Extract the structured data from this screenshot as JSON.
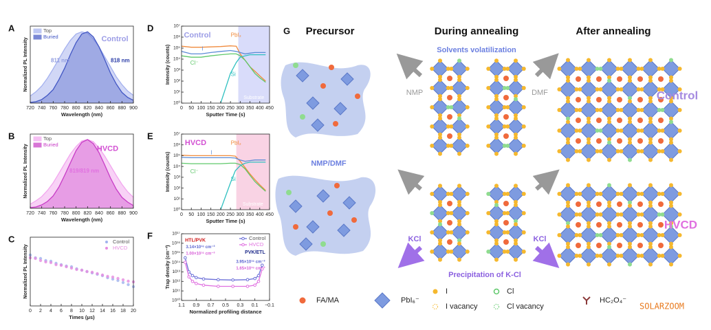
{
  "chart_data": [
    {
      "type": "area",
      "label": "A",
      "xlabel": "Wavelength (nm)",
      "ylabel": "Normalized PL Intensity",
      "legend": "upper left",
      "x": [
        720,
        730,
        740,
        750,
        760,
        770,
        780,
        790,
        800,
        810,
        820,
        830,
        840,
        850,
        860,
        870,
        880,
        890,
        900
      ],
      "xlim": [
        720,
        900
      ],
      "xticks": [
        720,
        740,
        760,
        780,
        800,
        820,
        840,
        860,
        880,
        900
      ],
      "ylim": [
        0,
        1.08
      ],
      "series": [
        {
          "name": "Top",
          "color": "#a3b0ee",
          "values": [
            0.1,
            0.16,
            0.24,
            0.35,
            0.48,
            0.62,
            0.76,
            0.88,
            0.97,
            1.0,
            0.98,
            0.9,
            0.79,
            0.65,
            0.51,
            0.37,
            0.26,
            0.17,
            0.11
          ]
        },
        {
          "name": "Buried",
          "color": "#4257c4",
          "values": [
            0.01,
            0.02,
            0.05,
            0.11,
            0.19,
            0.33,
            0.49,
            0.68,
            0.85,
            0.97,
            1.0,
            0.93,
            0.79,
            0.61,
            0.42,
            0.27,
            0.15,
            0.08,
            0.04
          ]
        }
      ],
      "annotations": [
        {
          "text": "Control",
          "color": "#9c9de6"
        },
        {
          "text": "811 nm",
          "color": "#8f9be0"
        },
        {
          "text": "818 nm",
          "color": "#2b3da8"
        }
      ]
    },
    {
      "type": "area",
      "label": "B",
      "xlabel": "Wavelength (nm)",
      "ylabel": "Normalized PL Intensity",
      "legend": "upper left",
      "x": [
        720,
        730,
        740,
        750,
        760,
        770,
        780,
        790,
        800,
        810,
        820,
        830,
        840,
        850,
        860,
        870,
        880,
        890,
        900
      ],
      "xlim": [
        720,
        900
      ],
      "xticks": [
        720,
        740,
        760,
        780,
        800,
        820,
        840,
        860,
        880,
        900
      ],
      "ylim": [
        0,
        1.08
      ],
      "series": [
        {
          "name": "Top",
          "color": "#f2a6ee",
          "values": [
            0.06,
            0.11,
            0.17,
            0.26,
            0.37,
            0.51,
            0.65,
            0.79,
            0.9,
            0.98,
            1.0,
            0.97,
            0.88,
            0.76,
            0.62,
            0.48,
            0.35,
            0.24,
            0.16
          ]
        },
        {
          "name": "Buried",
          "color": "#c83cc6",
          "values": [
            0.01,
            0.02,
            0.05,
            0.1,
            0.18,
            0.31,
            0.48,
            0.66,
            0.84,
            0.96,
            1.0,
            0.94,
            0.81,
            0.63,
            0.44,
            0.28,
            0.16,
            0.09,
            0.04
          ]
        }
      ],
      "annotations": [
        {
          "text": "HVCD",
          "color": "#d24fd2"
        },
        {
          "text": "819/819 nm",
          "color": "#e070e0"
        }
      ]
    },
    {
      "type": "scatter",
      "label": "C",
      "xlabel": "Times (μs)",
      "ylabel": "Normalized PL Intensity",
      "legend": "upper right",
      "x": [
        0,
        1,
        2,
        3,
        4,
        5,
        6,
        7,
        8,
        9,
        10,
        11,
        12,
        13,
        14,
        15,
        16,
        17,
        18,
        19,
        20
      ],
      "xlim": [
        0,
        20
      ],
      "xticks": [
        0,
        2,
        4,
        6,
        8,
        10,
        12,
        14,
        16,
        18,
        20
      ],
      "ylim": [
        0,
        1
      ],
      "series": [
        {
          "name": "Control",
          "color": "#9fb2ee",
          "values": [
            0.74,
            0.7,
            0.69,
            0.66,
            0.65,
            0.62,
            0.6,
            0.58,
            0.57,
            0.54,
            0.52,
            0.5,
            0.48,
            0.46,
            0.44,
            0.41,
            0.39,
            0.37,
            0.34,
            0.31,
            0.28
          ]
        },
        {
          "name": "HVCD",
          "color": "#e68be0",
          "values": [
            0.7,
            0.69,
            0.66,
            0.64,
            0.63,
            0.6,
            0.59,
            0.57,
            0.55,
            0.53,
            0.52,
            0.5,
            0.49,
            0.47,
            0.45,
            0.43,
            0.42,
            0.4,
            0.38,
            0.36,
            0.35
          ]
        }
      ],
      "annotations": []
    },
    {
      "type": "line",
      "label": "D",
      "xlabel": "Sputter Time (s)",
      "ylabel": "Intensity (counts)",
      "legend": "inline",
      "log": true,
      "x": [
        0,
        50,
        100,
        150,
        200,
        250,
        280,
        300,
        325,
        350,
        375,
        400,
        430
      ],
      "xlim": [
        0,
        450
      ],
      "xticks": [
        0,
        50,
        100,
        150,
        200,
        250,
        300,
        350,
        400,
        450
      ],
      "ylim": [
        1,
        10000000
      ],
      "yticks": [
        {
          "value": 1,
          "label": "10⁰"
        },
        {
          "value": 10,
          "label": "10¹"
        },
        {
          "value": 100,
          "label": "10²"
        },
        {
          "value": 1000,
          "label": "10³"
        },
        {
          "value": 10000,
          "label": "10⁴"
        },
        {
          "value": 100000,
          "label": "10⁵"
        },
        {
          "value": 1000000,
          "label": "10⁶"
        },
        {
          "value": 10000000,
          "label": "10⁷"
        }
      ],
      "shade": [
        290,
        450
      ],
      "shade_color": "#d9dcfa",
      "shade_label": "Substrate",
      "series": [
        {
          "name": "PbI₂",
          "color": "#f08a3c",
          "values": [
            150000,
            120000,
            120000,
            130000,
            140000,
            160000,
            150000,
            30000,
            8000,
            2000,
            800,
            300,
            100
          ]
        },
        {
          "name": "I",
          "color": "#5b8bd6",
          "values": [
            50000,
            30000,
            30000,
            40000,
            50000,
            60000,
            50000,
            40000,
            30000,
            35000,
            40000,
            40000,
            40000
          ]
        },
        {
          "name": "Cl⁻",
          "color": "#5ec86a",
          "values": [
            20000,
            15000,
            15000,
            20000,
            25000,
            30000,
            30000,
            20000,
            8000,
            2000,
            500,
            200,
            80
          ]
        },
        {
          "name": "Si",
          "color": "#2fc0c0",
          "values": [
            null,
            null,
            null,
            null,
            1,
            500,
            5000,
            15000,
            20000,
            25000,
            25000,
            25000,
            25000
          ]
        }
      ],
      "annotations": [
        {
          "text": "Control",
          "color": "#9c9de6"
        }
      ]
    },
    {
      "type": "line",
      "label": "E",
      "xlabel": "Sputter Time (s)",
      "ylabel": "Intensity (counts)",
      "legend": "inline",
      "log": true,
      "x": [
        0,
        50,
        100,
        150,
        200,
        250,
        275,
        300,
        325,
        350,
        375,
        400,
        430
      ],
      "xlim": [
        0,
        450
      ],
      "xticks": [
        0,
        50,
        100,
        150,
        200,
        250,
        300,
        350,
        400,
        450
      ],
      "ylim": [
        1,
        10000000
      ],
      "yticks": [
        {
          "value": 1,
          "label": "10⁰"
        },
        {
          "value": 10,
          "label": "10¹"
        },
        {
          "value": 100,
          "label": "10²"
        },
        {
          "value": 1000,
          "label": "10³"
        },
        {
          "value": 10000,
          "label": "10⁴"
        },
        {
          "value": 100000,
          "label": "10⁵"
        },
        {
          "value": 1000000,
          "label": "10⁶"
        },
        {
          "value": 10000000,
          "label": "10⁷"
        }
      ],
      "shade": [
        280,
        450
      ],
      "shade_color": "#f9d3e4",
      "shade_label": "Substrate",
      "series": [
        {
          "name": "PbI₂",
          "color": "#f08a3c",
          "values": [
            110000,
            100000,
            100000,
            100000,
            100000,
            100000,
            90000,
            30000,
            8000,
            2000,
            600,
            200,
            60
          ]
        },
        {
          "name": "I",
          "color": "#5b8bd6",
          "values": [
            70000,
            65000,
            65000,
            65000,
            65000,
            65000,
            60000,
            40000,
            30000,
            35000,
            40000,
            40000,
            40000
          ]
        },
        {
          "name": "Cl⁻",
          "color": "#5ec86a",
          "values": [
            20000,
            18000,
            18000,
            18000,
            18000,
            20000,
            20000,
            15000,
            6000,
            1500,
            400,
            150,
            50
          ]
        },
        {
          "name": "Si",
          "color": "#2fc0c0",
          "values": [
            null,
            null,
            null,
            null,
            1,
            300,
            4000,
            12000,
            20000,
            25000,
            25000,
            25000,
            25000
          ]
        }
      ],
      "annotations": [
        {
          "text": "HVCD",
          "color": "#d24fd2"
        }
      ]
    },
    {
      "type": "line",
      "label": "F",
      "xlabel": "Normalized profiling distance",
      "ylabel": "Trap density (cm⁻³)",
      "legend": "upper right",
      "log": true,
      "markers": true,
      "x": [
        1.05,
        1.0,
        0.95,
        0.9,
        0.8,
        0.6,
        0.4,
        0.2,
        0.1,
        0.05,
        0.0
      ],
      "xlim": [
        1.1,
        -0.1
      ],
      "xticks": [
        1.1,
        0.9,
        0.7,
        0.5,
        0.3,
        0.1,
        {
          "value": -0.1,
          "label": "−0.1"
        }
      ],
      "ylim": [
        10000000000,
        100000000000000000
      ],
      "yticks": [
        {
          "value": 10000000000,
          "label": "10¹⁰"
        },
        {
          "value": 100000000000,
          "label": "10¹¹"
        },
        {
          "value": 1000000000000,
          "label": "10¹²"
        },
        {
          "value": 10000000000000,
          "label": "10¹³"
        },
        {
          "value": 100000000000000,
          "label": "10¹⁴"
        },
        {
          "value": 1000000000000000,
          "label": "10¹⁵"
        },
        {
          "value": 10000000000000000,
          "label": "10¹⁶"
        },
        {
          "value": 100000000000000000,
          "label": "10¹⁷"
        }
      ],
      "series": [
        {
          "name": "Control",
          "color": "#6b6fd8",
          "values": [
            300000000000000,
            10000000000000,
            4000000000000,
            2500000000000,
            1800000000000,
            1500000000000,
            1400000000000,
            1500000000000,
            2000000000000,
            4000000000000,
            50000000000000
          ]
        },
        {
          "name": "HVCD",
          "color": "#e070e0",
          "values": [
            100000000000000,
            3000000000000,
            1000000000000,
            600000000000,
            400000000000,
            300000000000,
            300000000000,
            300000000000,
            400000000000,
            1000000000000,
            20000000000000
          ]
        }
      ],
      "annotations": [
        {
          "text": "HTL/PVK",
          "color": "#d02020"
        },
        {
          "text": "3.14×10¹⁶ cm⁻³",
          "color": "#5b63d0"
        },
        {
          "text": "1.00×10¹⁶ cm⁻³",
          "color": "#d860d8"
        },
        {
          "text": "PVK/ETL",
          "color": "#1d2a8a"
        },
        {
          "text": "3.95×10¹⁶ cm⁻³",
          "color": "#5b63d0"
        },
        {
          "text": "1.65×10¹⁶ cm⁻³",
          "color": "#d860d8"
        }
      ]
    }
  ],
  "diagram": {
    "label": "G",
    "columns": [
      "Precursor",
      "During annealing",
      "After annealing"
    ],
    "top": {
      "process": "Solvents volatilization",
      "left_solvent": "NMP",
      "right_solvent": "DMF",
      "sample": "Control"
    },
    "bottom": {
      "solvent": "NMP/DMF",
      "left_additive": "KCl",
      "right_additive": "KCl",
      "process": "Precipitation of K-Cl",
      "sample": "HVCD"
    },
    "legend": [
      "FA/MA",
      "PbI₆⁻",
      "I",
      "Cl",
      "I vacancy",
      "Cl vacancy",
      "HC₂O₄⁻"
    ]
  },
  "watermark": "SOLARZOOM"
}
